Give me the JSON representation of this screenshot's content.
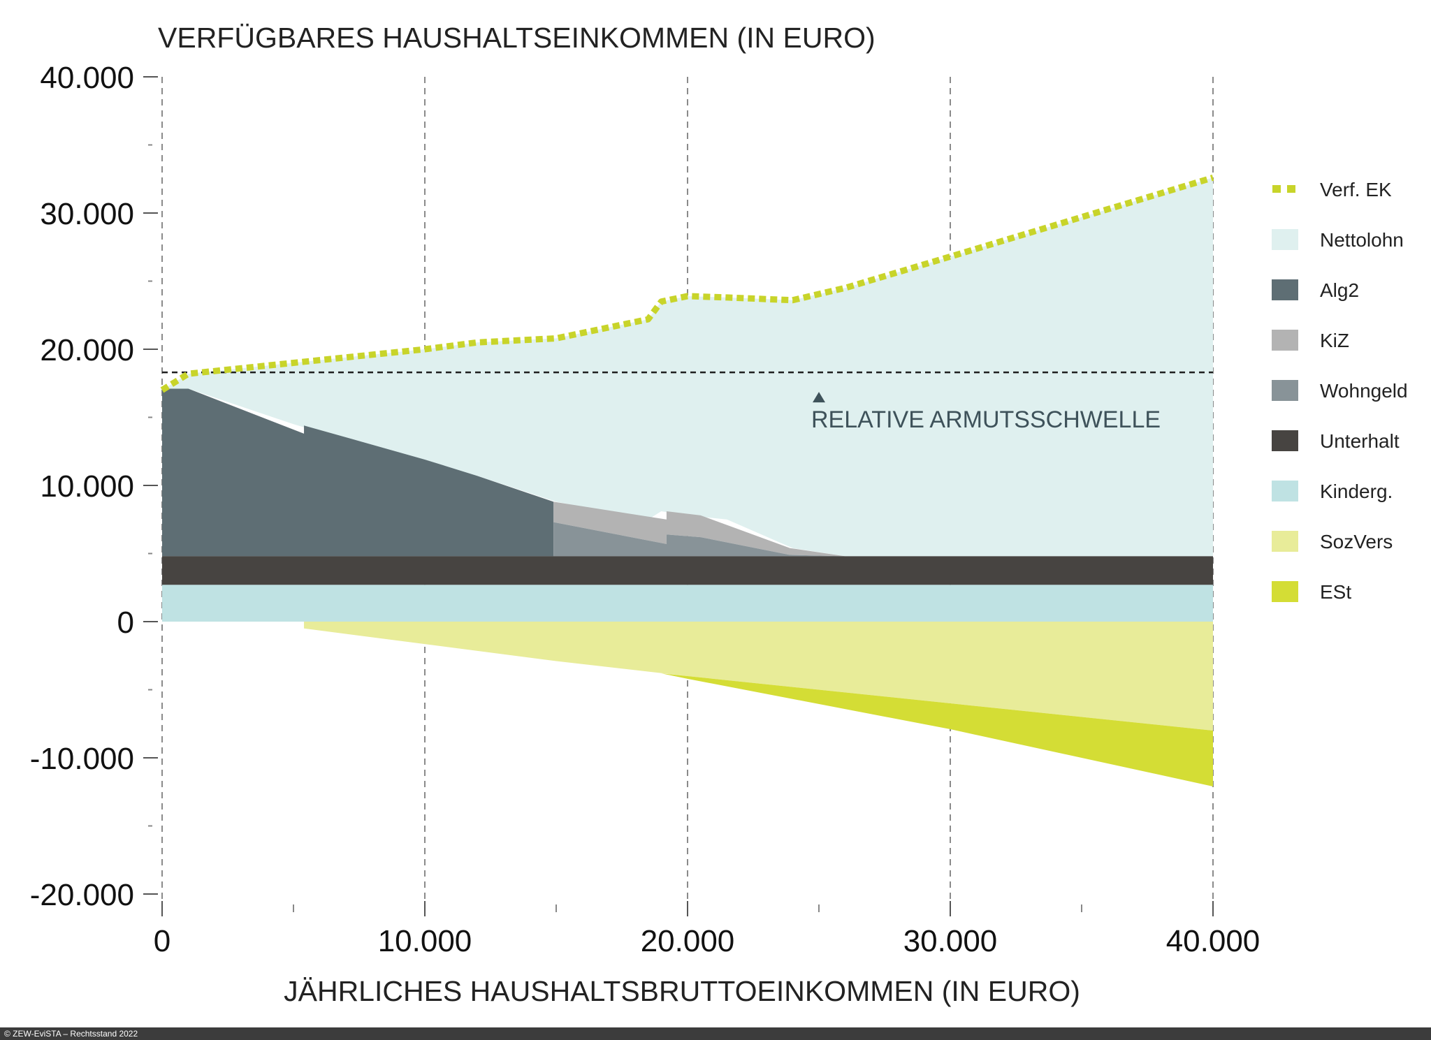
{
  "chart_data": {
    "type": "area",
    "title": "VERFÜGBARES HAUSHALTSEINKOMMEN (IN EURO)",
    "xlabel": "JÄHRLICHES HAUSHALTSBRUTTOEINKOMMEN (IN EURO)",
    "ylabel": "",
    "xlim": [
      0,
      40000
    ],
    "ylim": [
      -20000,
      40000
    ],
    "x_ticks": [
      0,
      10000,
      20000,
      30000,
      40000
    ],
    "x_tick_labels": [
      "0",
      "10.000",
      "20.000",
      "30.000",
      "40.000"
    ],
    "y_ticks": [
      40000,
      30000,
      20000,
      10000,
      0,
      -10000,
      -20000
    ],
    "y_tick_labels": [
      "40.000",
      "30.000",
      "20.000",
      "10.000",
      "0",
      "-10.000",
      "-20.000"
    ],
    "grid": "vertical dashed",
    "legend_position": "right",
    "armutsschwelle": {
      "value": 18300,
      "label": "RELATIVE ARMUTSSCHWELLE",
      "marker_x": 25000
    },
    "colors": {
      "verf_ek": "#c8d42a",
      "nettolohn": "#dff0ef",
      "alg2": "#5e6e74",
      "kiz": "#b3b3b3",
      "wohngeld": "#889398",
      "unterhalt": "#474441",
      "kinderg": "#bfe2e3",
      "sozvers": "#e8ec99",
      "est": "#d4dd35"
    },
    "series": [
      {
        "name": "Verf. EK",
        "kind": "line",
        "x": [
          0,
          1000,
          5000,
          10000,
          12000,
          15000,
          18500,
          19000,
          20000,
          21500,
          24000,
          26000,
          30000,
          35000,
          40000
        ],
        "values": [
          17000,
          18200,
          19000,
          20000,
          20500,
          20800,
          22200,
          23500,
          23900,
          23800,
          23600,
          24500,
          26800,
          29700,
          32600
        ]
      },
      {
        "name": "Nettolohn",
        "kind": "band",
        "x": [
          0,
          1000,
          5000,
          10000,
          12000,
          15000,
          18500,
          19000,
          20000,
          21500,
          24000,
          26000,
          30000,
          35000,
          40000
        ],
        "low": [
          17000,
          17100,
          14500,
          11600,
          10700,
          8800,
          7500,
          8100,
          7800,
          7500,
          5400,
          4800,
          4800,
          4800,
          4800
        ],
        "high": [
          17000,
          18200,
          19000,
          20000,
          20500,
          20800,
          22200,
          23500,
          23900,
          23800,
          23600,
          24500,
          26800,
          29700,
          32600
        ]
      },
      {
        "name": "Alg2",
        "kind": "band",
        "x": [
          0,
          1000,
          5400,
          5400,
          10000,
          12000,
          14900,
          14900
        ],
        "low": [
          4800,
          4800,
          4800,
          4800,
          4800,
          4800,
          4800,
          4800
        ],
        "high": [
          17100,
          17100,
          13800,
          14400,
          11900,
          10700,
          8800,
          4800
        ]
      },
      {
        "name": "KiZ",
        "kind": "band",
        "x": [
          14900,
          19200,
          19200,
          20500,
          23900,
          26000
        ],
        "low": [
          7300,
          5700,
          6400,
          6200,
          4900,
          4800
        ],
        "high": [
          8800,
          7500,
          8100,
          7800,
          5400,
          4800
        ]
      },
      {
        "name": "Wohngeld",
        "kind": "band",
        "x": [
          14900,
          19200,
          19200,
          20500,
          23900,
          26000
        ],
        "low": [
          4800,
          4800,
          4800,
          4800,
          4800,
          4800
        ],
        "high": [
          7300,
          5700,
          6400,
          6200,
          4900,
          4800
        ]
      },
      {
        "name": "Unterhalt",
        "kind": "band",
        "x": [
          0,
          40000
        ],
        "low": [
          2700,
          2700
        ],
        "high": [
          4800,
          4800
        ]
      },
      {
        "name": "Kinderg.",
        "kind": "band",
        "x": [
          0,
          40000
        ],
        "low": [
          0,
          0
        ],
        "high": [
          2700,
          2700
        ]
      },
      {
        "name": "SozVers",
        "kind": "band",
        "x": [
          5400,
          5400,
          15000,
          20000,
          30000,
          40000
        ],
        "low": [
          0,
          -500,
          -2900,
          -4000,
          -6000,
          -8000
        ],
        "high": [
          0,
          0,
          0,
          0,
          0,
          0
        ]
      },
      {
        "name": "ESt",
        "kind": "band",
        "x": [
          19000,
          20000,
          30000,
          40000,
          40000
        ],
        "low": [
          -3800,
          -4200,
          -7900,
          -12100,
          -8000
        ],
        "high": [
          -3800,
          -4000,
          -6000,
          -8000,
          -8000
        ]
      }
    ],
    "legend": [
      "Verf. EK",
      "Nettolohn",
      "Alg2",
      "KiZ",
      "Wohngeld",
      "Unterhalt",
      "Kinderg.",
      "SozVers",
      "ESt"
    ]
  },
  "footer": {
    "text": "© ZEW-EviSTA – Rechtsstand 2022"
  }
}
